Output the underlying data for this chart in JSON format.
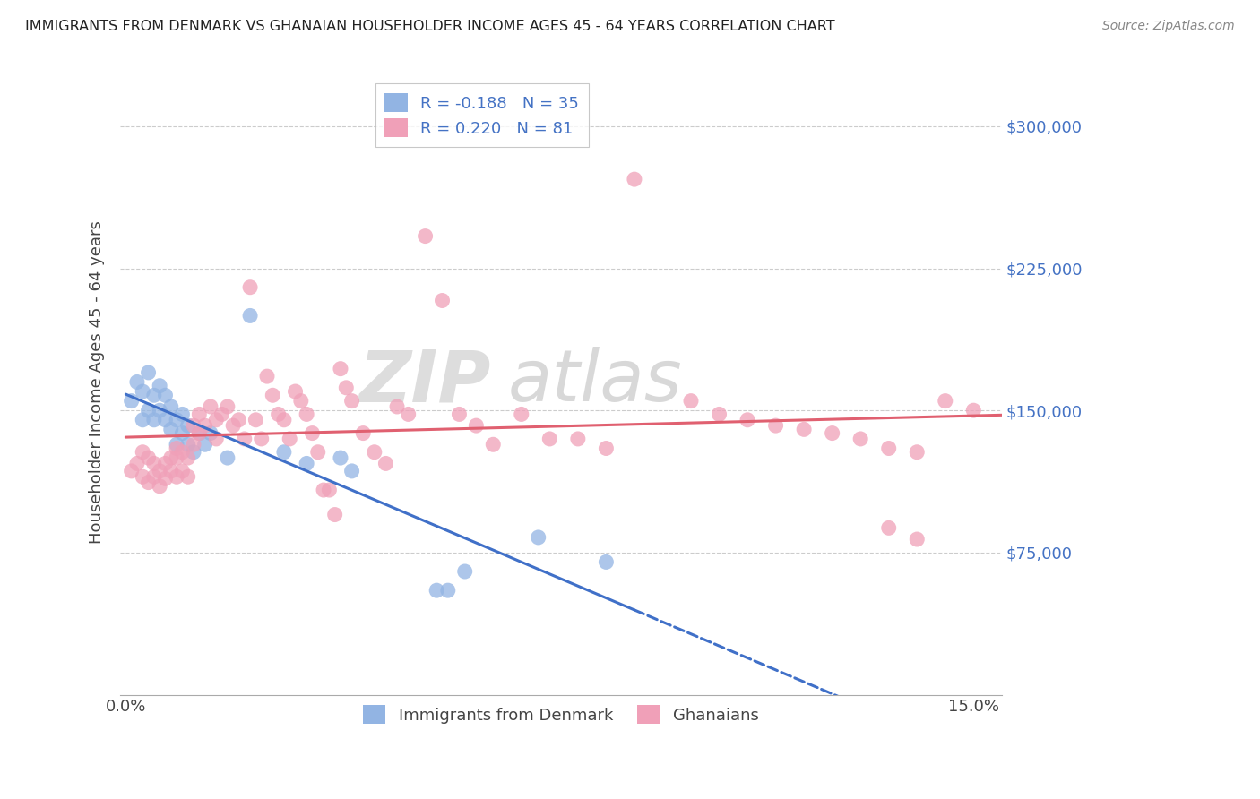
{
  "title": "IMMIGRANTS FROM DENMARK VS GHANAIAN HOUSEHOLDER INCOME AGES 45 - 64 YEARS CORRELATION CHART",
  "source": "Source: ZipAtlas.com",
  "ylabel": "Householder Income Ages 45 - 64 years",
  "ylim": [
    0,
    330000
  ],
  "xlim": [
    -0.001,
    0.155
  ],
  "yticks": [
    75000,
    150000,
    225000,
    300000
  ],
  "ytick_labels": [
    "$75,000",
    "$150,000",
    "$225,000",
    "$300,000"
  ],
  "xtick_positions": [
    0.0,
    0.025,
    0.05,
    0.075,
    0.1,
    0.125,
    0.15
  ],
  "xtick_labels": [
    "0.0%",
    "",
    "",
    "",
    "",
    "",
    "15.0%"
  ],
  "legend_r1": "R = -0.188",
  "legend_n1": "N = 35",
  "legend_r2": "R = 0.220",
  "legend_n2": "N = 81",
  "blue_color": "#92B4E3",
  "pink_color": "#F0A0B8",
  "line_blue": "#4070C8",
  "line_pink": "#E06070",
  "watermark_zip": "ZIP",
  "watermark_atlas": "atlas",
  "blue_x": [
    0.001,
    0.002,
    0.003,
    0.003,
    0.004,
    0.004,
    0.005,
    0.005,
    0.006,
    0.006,
    0.007,
    0.007,
    0.008,
    0.008,
    0.009,
    0.009,
    0.01,
    0.01,
    0.011,
    0.011,
    0.012,
    0.013,
    0.014,
    0.015,
    0.018,
    0.022,
    0.028,
    0.032,
    0.038,
    0.04,
    0.055,
    0.057,
    0.06,
    0.073,
    0.085
  ],
  "blue_y": [
    155000,
    165000,
    145000,
    160000,
    150000,
    170000,
    145000,
    158000,
    150000,
    163000,
    145000,
    158000,
    140000,
    152000,
    145000,
    132000,
    138000,
    148000,
    132000,
    142000,
    128000,
    138000,
    132000,
    138000,
    125000,
    200000,
    128000,
    122000,
    125000,
    118000,
    55000,
    55000,
    65000,
    83000,
    70000
  ],
  "pink_x": [
    0.001,
    0.002,
    0.003,
    0.003,
    0.004,
    0.004,
    0.005,
    0.005,
    0.006,
    0.006,
    0.007,
    0.007,
    0.008,
    0.008,
    0.009,
    0.009,
    0.009,
    0.01,
    0.01,
    0.011,
    0.011,
    0.012,
    0.012,
    0.013,
    0.013,
    0.014,
    0.015,
    0.016,
    0.016,
    0.017,
    0.018,
    0.019,
    0.02,
    0.021,
    0.022,
    0.023,
    0.024,
    0.025,
    0.026,
    0.027,
    0.028,
    0.029,
    0.03,
    0.031,
    0.032,
    0.033,
    0.034,
    0.035,
    0.036,
    0.037,
    0.038,
    0.039,
    0.04,
    0.042,
    0.044,
    0.046,
    0.048,
    0.05,
    0.053,
    0.056,
    0.059,
    0.062,
    0.065,
    0.07,
    0.075,
    0.08,
    0.085,
    0.09,
    0.1,
    0.105,
    0.11,
    0.115,
    0.12,
    0.125,
    0.13,
    0.135,
    0.14,
    0.145,
    0.15,
    0.135,
    0.14
  ],
  "pink_y": [
    118000,
    122000,
    128000,
    115000,
    125000,
    112000,
    122000,
    115000,
    118000,
    110000,
    122000,
    114000,
    125000,
    118000,
    130000,
    125000,
    115000,
    128000,
    118000,
    125000,
    115000,
    142000,
    132000,
    148000,
    138000,
    142000,
    152000,
    145000,
    135000,
    148000,
    152000,
    142000,
    145000,
    135000,
    215000,
    145000,
    135000,
    168000,
    158000,
    148000,
    145000,
    135000,
    160000,
    155000,
    148000,
    138000,
    128000,
    108000,
    108000,
    95000,
    172000,
    162000,
    155000,
    138000,
    128000,
    122000,
    152000,
    148000,
    242000,
    208000,
    148000,
    142000,
    132000,
    148000,
    135000,
    135000,
    130000,
    272000,
    155000,
    148000,
    145000,
    142000,
    140000,
    138000,
    135000,
    130000,
    128000,
    155000,
    150000,
    88000,
    82000
  ]
}
